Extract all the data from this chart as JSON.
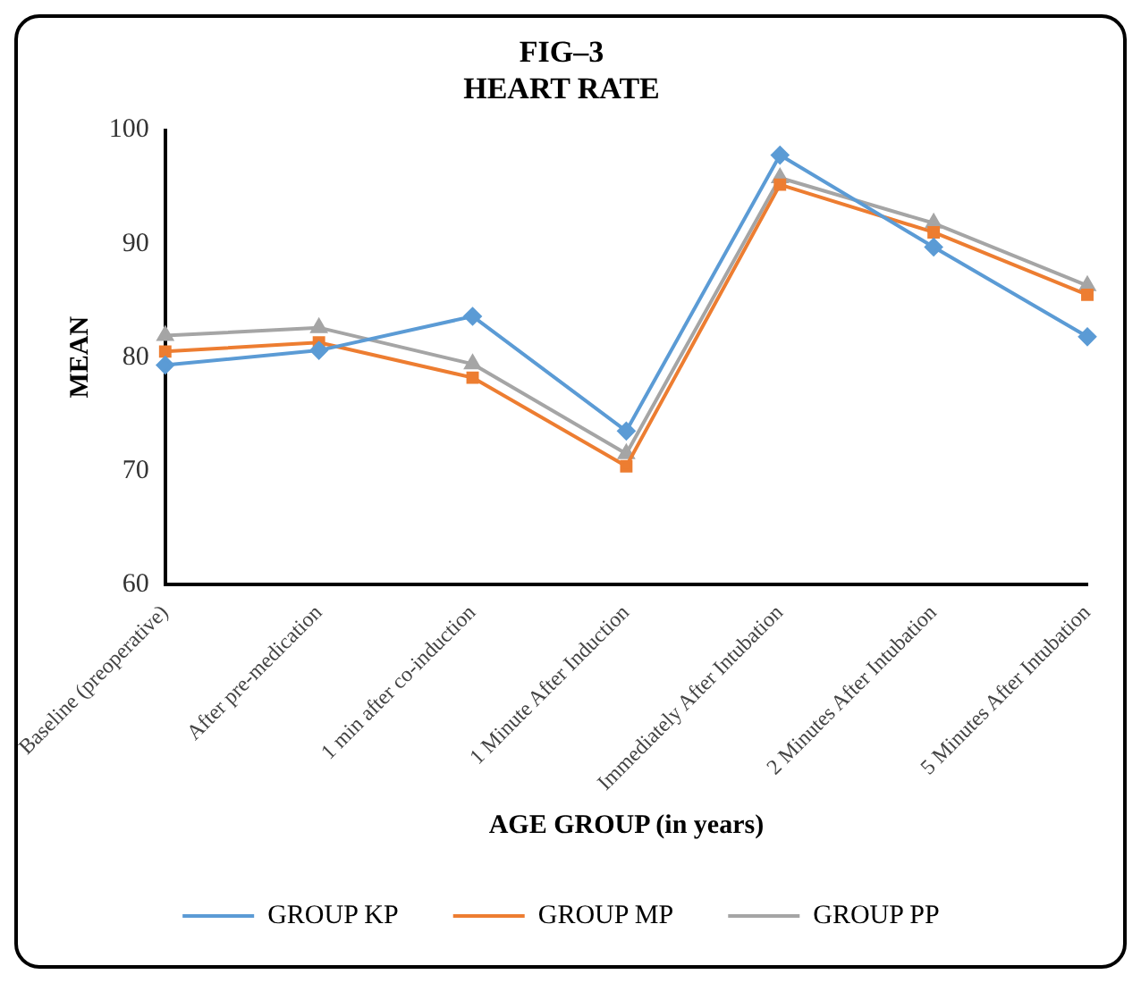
{
  "chart_data": {
    "type": "line",
    "title": "FIG–3\nHEART RATE",
    "xlabel": "AGE GROUP (in years)",
    "ylabel": "MEAN",
    "categories": [
      "Baseline (preoperative)",
      "After pre-medication",
      "1 min after co-induction",
      "1 Minute After Induction",
      "Immediately After Intubation",
      "2 Minutes After Intubation",
      "5 Minutes After Intubation"
    ],
    "series": [
      {
        "name": "GROUP KP",
        "color": "#5b9bd5",
        "marker": "diamond",
        "values": [
          79.3,
          80.6,
          83.6,
          73.5,
          97.8,
          89.7,
          81.8
        ]
      },
      {
        "name": "GROUP MP",
        "color": "#ed7d31",
        "marker": "square",
        "values": [
          80.5,
          81.3,
          78.2,
          70.4,
          95.2,
          91.0,
          85.5
        ]
      },
      {
        "name": "GROUP PP",
        "color": "#a5a5a5",
        "marker": "triangle",
        "values": [
          81.9,
          82.6,
          79.4,
          71.5,
          95.8,
          91.8,
          86.3
        ]
      }
    ],
    "ylim": [
      60,
      100
    ],
    "yticks": [
      60,
      70,
      80,
      90,
      100
    ],
    "grid": false,
    "legend": "bottom",
    "line_style": "solid"
  }
}
